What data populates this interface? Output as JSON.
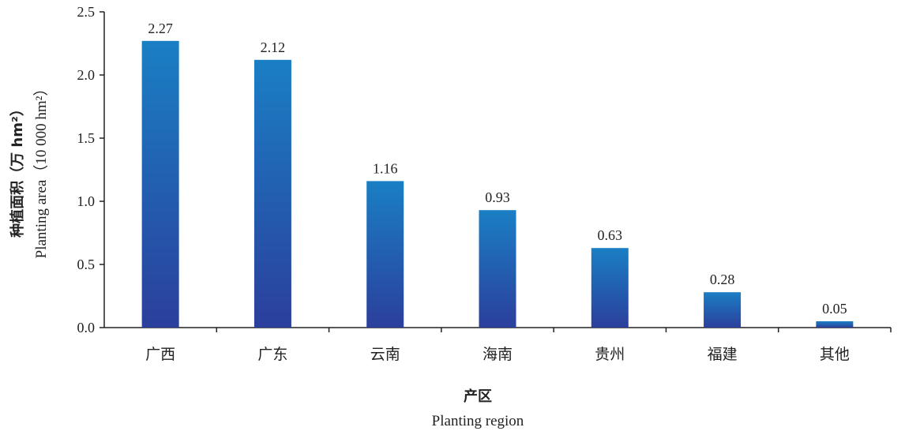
{
  "chart_data": {
    "type": "bar",
    "categories": [
      "广西",
      "广东",
      "云南",
      "海南",
      "贵州",
      "福建",
      "其他"
    ],
    "values": [
      2.27,
      2.12,
      1.16,
      0.93,
      0.63,
      0.28,
      0.05
    ],
    "value_labels": [
      "2.27",
      "2.12",
      "1.16",
      "0.93",
      "0.63",
      "0.28",
      "0.05"
    ],
    "ylim": [
      0,
      2.5
    ],
    "yticks": [
      "0.0",
      "0.5",
      "1.0",
      "1.5",
      "2.0",
      "2.5"
    ],
    "ylabel_cn": "种植面积（万 hm²）",
    "ylabel_en": "Planting area（10 000 hm²）",
    "xlabel_cn": "产区",
    "xlabel_en": "Planting region",
    "grid": false,
    "bar_color_top": "#1a7fc4",
    "bar_color_bottom": "#2b3f9c"
  }
}
